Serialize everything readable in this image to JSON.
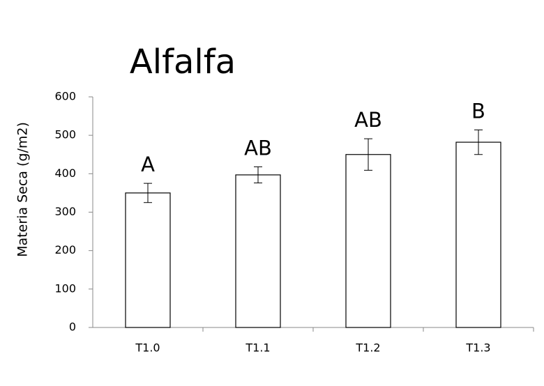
{
  "chart_data": {
    "type": "bar",
    "title": "Alfalfa",
    "y_label": "Materia Seca (g/m2)",
    "categories": [
      "T1.0",
      "T1.1",
      "T1.2",
      "T1.3"
    ],
    "values": [
      350,
      397,
      450,
      482
    ],
    "errors": [
      25,
      21,
      41,
      32
    ],
    "letters": [
      "A",
      "AB",
      "AB",
      "B"
    ],
    "color": "#ffffff",
    "ylim": [
      0,
      600
    ],
    "yticks": [
      0,
      100,
      200,
      300,
      400,
      500,
      600
    ],
    "grid": false
  }
}
